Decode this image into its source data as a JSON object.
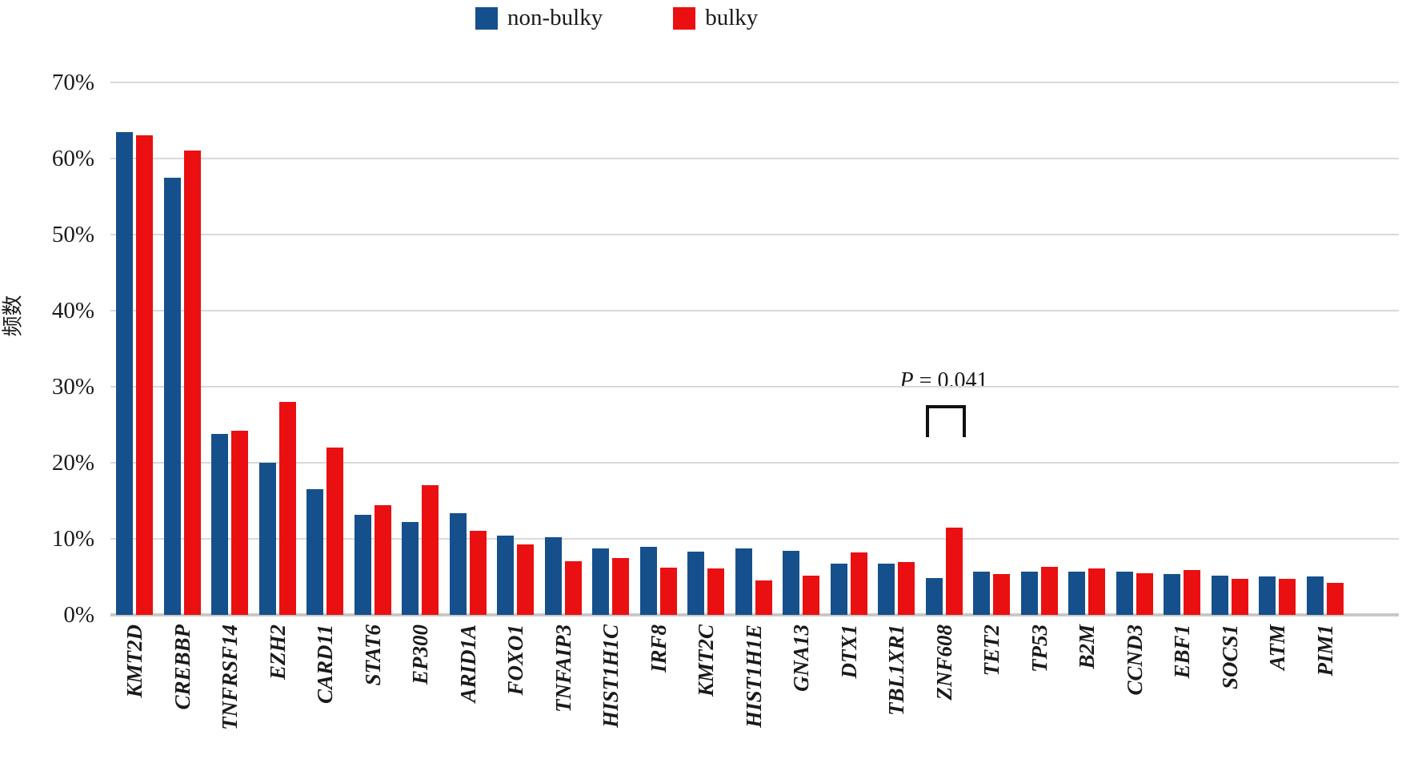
{
  "legend": {
    "items": [
      {
        "label": "non-bulky",
        "color": "#15508C"
      },
      {
        "label": "bulky",
        "color": "#EA1011"
      }
    ]
  },
  "y_axis": {
    "title": "频数",
    "tick_labels": [
      "70%",
      "60%",
      "50%",
      "40%",
      "30%",
      "20%",
      "10%",
      "0%"
    ]
  },
  "annotation": {
    "p_symbol": "P",
    "p_rest": " = 0.041",
    "full_text": "P = 0.041",
    "target_category": "ZNF608"
  },
  "chart_data": {
    "type": "bar",
    "title": "",
    "xlabel": "",
    "ylabel": "频数",
    "ylim": [
      0,
      70
    ],
    "y_tick_step": 10,
    "grid": true,
    "legend_position": "top-center",
    "categories": [
      "KMT2D",
      "CREBBP",
      "TNFRSF14",
      "EZH2",
      "CARD11",
      "STAT6",
      "EP300",
      "ARID1A",
      "FOXO1",
      "TNFAIP3",
      "HIST1H1C",
      "IRF8",
      "KMT2C",
      "HIST1H1E",
      "GNA13",
      "DTX1",
      "TBL1XR1",
      "ZNF608",
      "TET2",
      "TP53",
      "B2M",
      "CCND3",
      "EBF1",
      "SOCS1",
      "ATM",
      "PIM1"
    ],
    "series": [
      {
        "name": "non-bulky",
        "color": "#15508C",
        "values": [
          63.5,
          57.5,
          23.8,
          20.0,
          16.5,
          13.2,
          12.2,
          13.4,
          10.4,
          10.2,
          8.7,
          8.9,
          8.3,
          8.7,
          8.4,
          6.7,
          6.7,
          4.8,
          5.7,
          5.7,
          5.7,
          5.7,
          5.4,
          5.2,
          5.0,
          5.0
        ]
      },
      {
        "name": "bulky",
        "color": "#EA1011",
        "values": [
          63.0,
          61.0,
          24.2,
          28.0,
          22.0,
          14.4,
          17.0,
          11.0,
          9.3,
          7.0,
          7.5,
          6.2,
          6.1,
          4.5,
          5.2,
          8.2,
          6.9,
          11.5,
          5.4,
          6.3,
          6.1,
          5.5,
          5.9,
          4.7,
          4.7,
          4.2
        ]
      }
    ],
    "annotations": [
      {
        "text": "P = 0.041",
        "category": "ZNF608",
        "series": "bulky"
      }
    ]
  },
  "colors": {
    "grid": "#D9D9D9",
    "baseline": "#C8C8C8",
    "text": "#1A1A1A"
  }
}
